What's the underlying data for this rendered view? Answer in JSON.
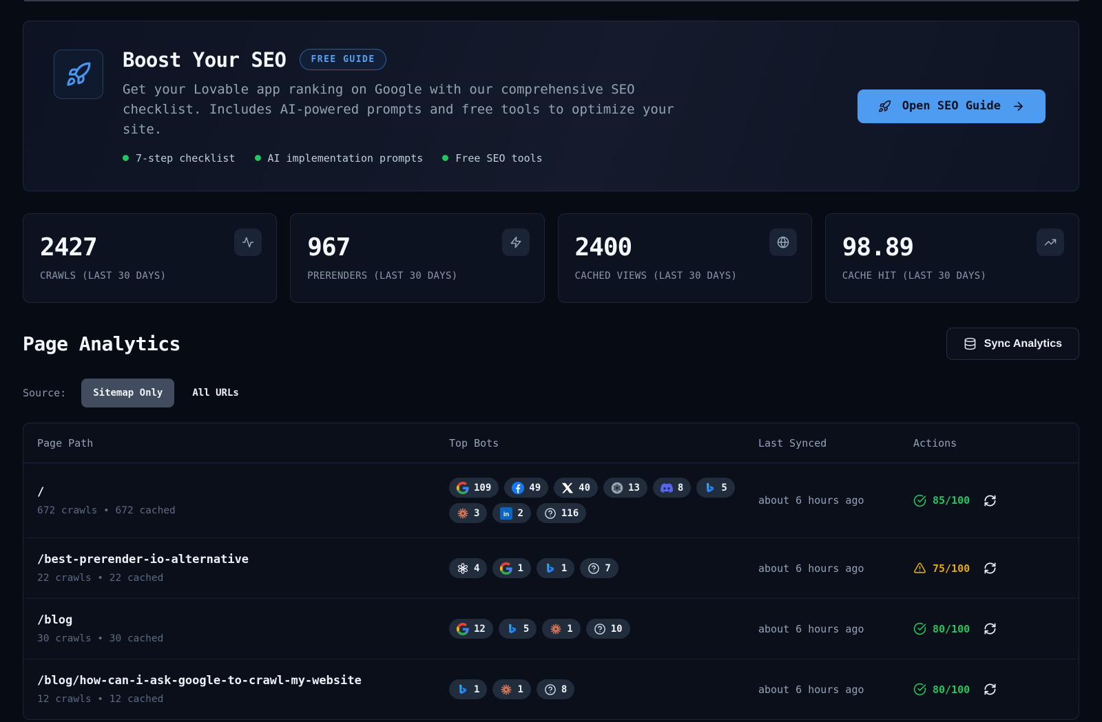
{
  "theme": {
    "accent_blue": "#4e9cf2",
    "success_green": "#22c55e",
    "warning_amber": "#e2a711",
    "background": "#070b14"
  },
  "banner": {
    "title": "Boost Your SEO",
    "badge": "FREE GUIDE",
    "description": "Get your Lovable app ranking on Google with our comprehensive SEO checklist. Includes AI-powered prompts and free tools to optimize your site.",
    "features": [
      "7-step checklist",
      "AI implementation prompts",
      "Free SEO tools"
    ],
    "cta_label": "Open SEO Guide"
  },
  "stats": [
    {
      "value": "2427",
      "label": "CRAWLS (LAST 30 DAYS)",
      "icon": "activity-icon"
    },
    {
      "value": "967",
      "label": "PRERENDERS (LAST 30 DAYS)",
      "icon": "zap-icon"
    },
    {
      "value": "2400",
      "label": "CACHED VIEWS (LAST 30 DAYS)",
      "icon": "globe-icon"
    },
    {
      "value": "98.89",
      "label": "CACHE HIT (LAST 30 DAYS)",
      "icon": "trending-up-icon"
    }
  ],
  "analytics": {
    "title": "Page Analytics",
    "sync_button": "Sync Analytics",
    "source_label": "Source:",
    "source_options": [
      {
        "label": "Sitemap Only",
        "active": true
      },
      {
        "label": "All URLs",
        "active": false
      }
    ]
  },
  "table": {
    "headers": [
      "Page Path",
      "Top Bots",
      "Last Synced",
      "Actions"
    ],
    "rows": [
      {
        "path": "/",
        "meta": "672 crawls • 672 cached",
        "bots": [
          {
            "icon": "google-icon",
            "count": "109"
          },
          {
            "icon": "facebook-icon",
            "count": "49"
          },
          {
            "icon": "x-icon",
            "count": "40"
          },
          {
            "icon": "openai-circle-icon",
            "count": "13"
          },
          {
            "icon": "discord-icon",
            "count": "8"
          },
          {
            "icon": "bing-icon",
            "count": "5"
          },
          {
            "icon": "claude-icon",
            "count": "3"
          },
          {
            "icon": "linkedin-icon",
            "count": "2"
          },
          {
            "icon": "unknown-bot-icon",
            "count": "116"
          }
        ],
        "last_synced": "about 6 hours ago",
        "score": "85/100",
        "score_status": "good"
      },
      {
        "path": "/best-prerender-io-alternative",
        "meta": "22 crawls • 22 cached",
        "bots": [
          {
            "icon": "openai-icon",
            "count": "4"
          },
          {
            "icon": "google-icon",
            "count": "1"
          },
          {
            "icon": "bing-icon",
            "count": "1"
          },
          {
            "icon": "unknown-bot-icon",
            "count": "7"
          }
        ],
        "last_synced": "about 6 hours ago",
        "score": "75/100",
        "score_status": "warn"
      },
      {
        "path": "/blog",
        "meta": "30 crawls • 30 cached",
        "bots": [
          {
            "icon": "google-icon",
            "count": "12"
          },
          {
            "icon": "bing-icon",
            "count": "5"
          },
          {
            "icon": "claude-icon",
            "count": "1"
          },
          {
            "icon": "unknown-bot-icon",
            "count": "10"
          }
        ],
        "last_synced": "about 6 hours ago",
        "score": "80/100",
        "score_status": "good"
      },
      {
        "path": "/blog/how-can-i-ask-google-to-crawl-my-website",
        "meta": "12 crawls • 12 cached",
        "bots": [
          {
            "icon": "bing-icon",
            "count": "1"
          },
          {
            "icon": "claude-icon",
            "count": "1"
          },
          {
            "icon": "unknown-bot-icon",
            "count": "8"
          }
        ],
        "last_synced": "about 6 hours ago",
        "score": "80/100",
        "score_status": "good"
      }
    ]
  }
}
